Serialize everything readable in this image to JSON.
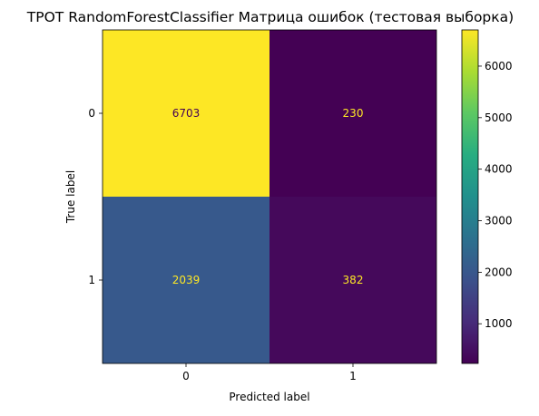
{
  "chart_data": {
    "type": "heatmap",
    "title": "TPOT RandomForestClassifier Матрица ошибок (тестовая выборка)",
    "xlabel": "Predicted label",
    "ylabel": "True label",
    "x_categories": [
      "0",
      "1"
    ],
    "y_categories": [
      "0",
      "1"
    ],
    "values": [
      [
        6703,
        230
      ],
      [
        2039,
        382
      ]
    ],
    "cell_labels": [
      [
        "6703",
        "230"
      ],
      [
        "2039",
        "382"
      ]
    ],
    "colorscale": "viridis",
    "colorbar": {
      "range": [
        230,
        6703
      ],
      "ticks": [
        1000,
        2000,
        3000,
        4000,
        5000,
        6000
      ],
      "tick_labels": [
        "1000",
        "2000",
        "3000",
        "4000",
        "5000",
        "6000"
      ]
    },
    "text_colors": {
      "on_dark": "#fde725",
      "on_light": "#440154"
    }
  }
}
